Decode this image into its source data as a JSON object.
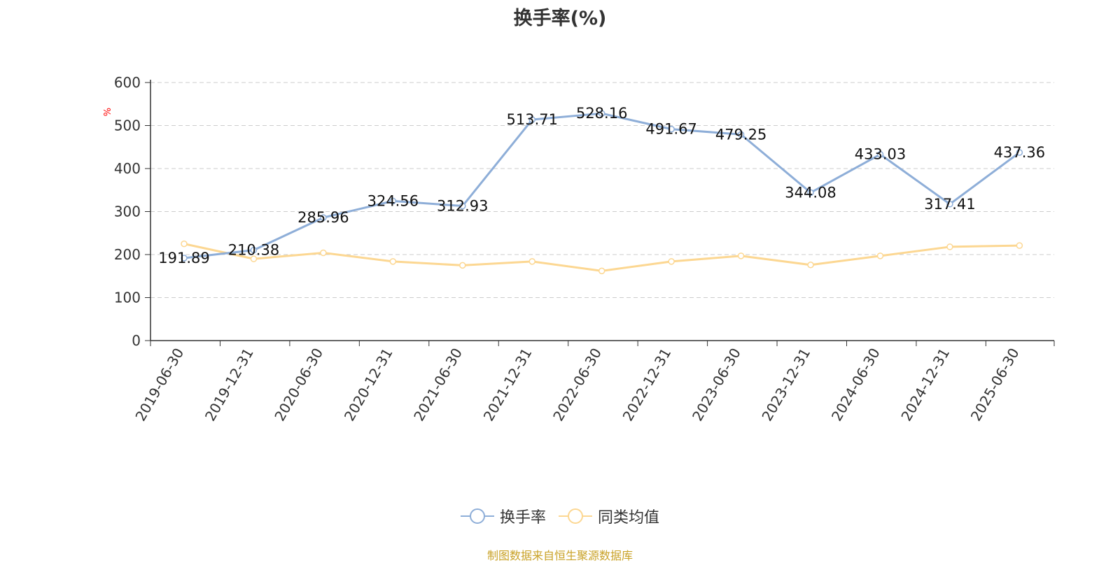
{
  "chart_data": {
    "type": "line",
    "title": "换手率(%)",
    "ylabel": "%",
    "categories": [
      "2019-06-30",
      "2019-12-31",
      "2020-06-30",
      "2020-12-31",
      "2021-06-30",
      "2021-12-31",
      "2022-06-30",
      "2022-12-31",
      "2023-06-30",
      "2023-12-31",
      "2024-06-30",
      "2024-12-31",
      "2025-06-30"
    ],
    "series": [
      {
        "name": "换手率",
        "color": "#8eaed8",
        "values": [
          191.89,
          210.38,
          285.96,
          324.56,
          312.93,
          513.71,
          528.16,
          491.67,
          479.25,
          344.08,
          433.03,
          317.41,
          437.36
        ],
        "data_labels": [
          "191.89",
          "210.38",
          "285.96",
          "324.56",
          "312.93",
          "513.71",
          "528.16",
          "491.67",
          "479.25",
          "344.08",
          "433.03",
          "317.41",
          "437.36"
        ]
      },
      {
        "name": "同类均值",
        "color": "#fcd792",
        "values": [
          225,
          190,
          204,
          184,
          175,
          184,
          162,
          184,
          197,
          176,
          197,
          218,
          221
        ]
      }
    ],
    "ylim": [
      0,
      600
    ],
    "yticks": [
      "0",
      "100",
      "200",
      "300",
      "400",
      "500",
      "600"
    ],
    "grid": true,
    "legend_position": "bottom"
  },
  "source_note": "制图数据来自恒生聚源数据库"
}
